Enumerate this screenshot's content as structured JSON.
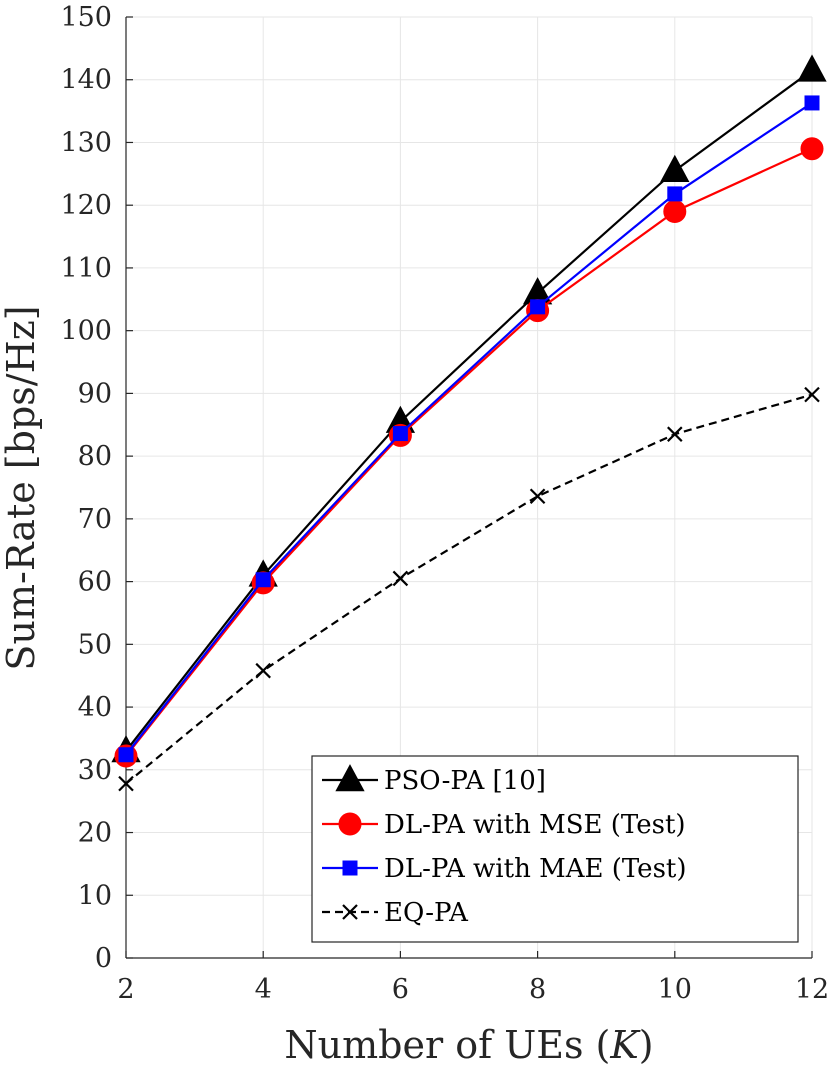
{
  "chart_data": {
    "type": "line",
    "xlabel": "Number of UEs",
    "xlabel_symbol": "K",
    "ylabel": "Sum-Rate [bps/Hz]",
    "x": [
      2,
      4,
      6,
      8,
      10,
      12
    ],
    "xlim": [
      2,
      12
    ],
    "ylim": [
      0,
      150
    ],
    "xticks": [
      2,
      4,
      6,
      8,
      10,
      12
    ],
    "yticks": [
      0,
      10,
      20,
      30,
      40,
      50,
      60,
      70,
      80,
      90,
      100,
      110,
      120,
      130,
      140,
      150
    ],
    "grid": true,
    "legend_position": "bottom-right",
    "series": [
      {
        "name": "PSO-PA [10]",
        "values": [
          33,
          61,
          85.5,
          106,
          125.5,
          141.5
        ],
        "color": "#000000",
        "marker": "triangle",
        "dash": "solid"
      },
      {
        "name": "DL-PA with MSE  (Test)",
        "values": [
          32.2,
          59.8,
          83.3,
          103.2,
          119,
          129
        ],
        "color": "#ff0000",
        "marker": "circle",
        "dash": "solid"
      },
      {
        "name": "DL-PA with MAE (Test)",
        "values": [
          32.4,
          60.3,
          83.6,
          103.8,
          121.8,
          136.3
        ],
        "color": "#0000ff",
        "marker": "square",
        "dash": "solid"
      },
      {
        "name": "EQ-PA",
        "values": [
          27.8,
          45.8,
          60.5,
          73.6,
          83.5,
          89.8
        ],
        "color": "#000000",
        "marker": "x",
        "dash": "dashed"
      }
    ]
  }
}
